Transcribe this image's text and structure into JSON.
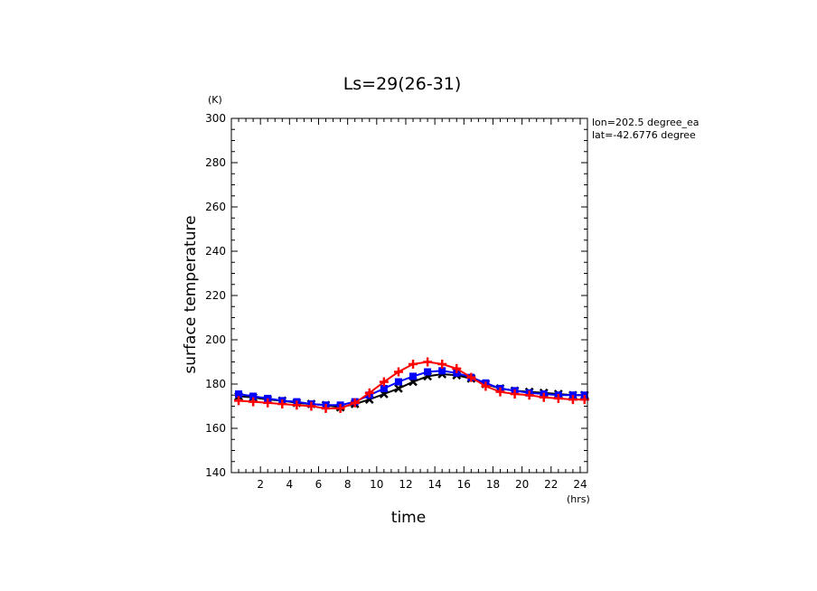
{
  "chart_data": {
    "type": "line",
    "title": "Ls=29(26-31)",
    "xlabel": "time",
    "ylabel": "surface temperature",
    "x_unit": "(hrs)",
    "y_unit": "(K)",
    "annotations": [
      "lon=202.5 degree_ea",
      "lat=-42.6776 degree"
    ],
    "xlim": [
      0,
      24.5
    ],
    "ylim": [
      140,
      300
    ],
    "x_ticks": [
      2,
      4,
      6,
      8,
      10,
      12,
      14,
      16,
      18,
      20,
      22,
      24
    ],
    "y_ticks": [
      140,
      160,
      180,
      200,
      220,
      240,
      260,
      280,
      300
    ],
    "grid": false,
    "legend": "none",
    "series": [
      {
        "color": "#000000",
        "marker": "x",
        "x": [
          0.5,
          1.5,
          2.5,
          3.5,
          4.5,
          5.5,
          6.5,
          7.5,
          8.5,
          9.5,
          10.5,
          11.5,
          12.5,
          13.5,
          14.5,
          15.5,
          16.5,
          17.5,
          18.5,
          19.5,
          20.5,
          21.5,
          22.5,
          23.5,
          24.3
        ],
        "y": [
          174.5,
          174,
          173,
          172.5,
          171.5,
          171,
          170.5,
          169.5,
          171,
          173,
          175.5,
          178,
          181,
          183.5,
          184.5,
          184,
          182.5,
          180,
          178,
          177,
          176.5,
          176,
          175.5,
          175,
          175
        ]
      },
      {
        "color": "#0000ff",
        "marker": "square",
        "x": [
          0.5,
          1.5,
          2.5,
          3.5,
          4.5,
          5.5,
          6.5,
          7.5,
          8.5,
          9.5,
          10.5,
          11.5,
          12.5,
          13.5,
          14.5,
          15.5,
          16.5,
          17.5,
          18.5,
          19.5,
          20.5,
          21.5,
          22.5,
          23.5,
          24.3
        ],
        "y": [
          175.5,
          174.5,
          173.5,
          172.5,
          172,
          171,
          170.5,
          170.5,
          172,
          175,
          178,
          181,
          183.5,
          185.5,
          186,
          185,
          183,
          180.5,
          178,
          177,
          176,
          175.5,
          175,
          175,
          175
        ]
      },
      {
        "color": "#ff0000",
        "marker": "plus",
        "x": [
          0.5,
          1.5,
          2.5,
          3.5,
          4.5,
          5.5,
          6.5,
          7.5,
          8.5,
          9.5,
          10.5,
          11.5,
          12.5,
          13.5,
          14.5,
          15.5,
          16.5,
          17.5,
          18.5,
          19.5,
          20.5,
          21.5,
          22.5,
          23.5,
          24.3
        ],
        "y": [
          172.5,
          172,
          171.5,
          171,
          170.5,
          170,
          169,
          169,
          171.5,
          176,
          181,
          185.5,
          189,
          190,
          189,
          187,
          183,
          179,
          176.5,
          175.5,
          175,
          174,
          173.5,
          173,
          173
        ]
      }
    ]
  }
}
